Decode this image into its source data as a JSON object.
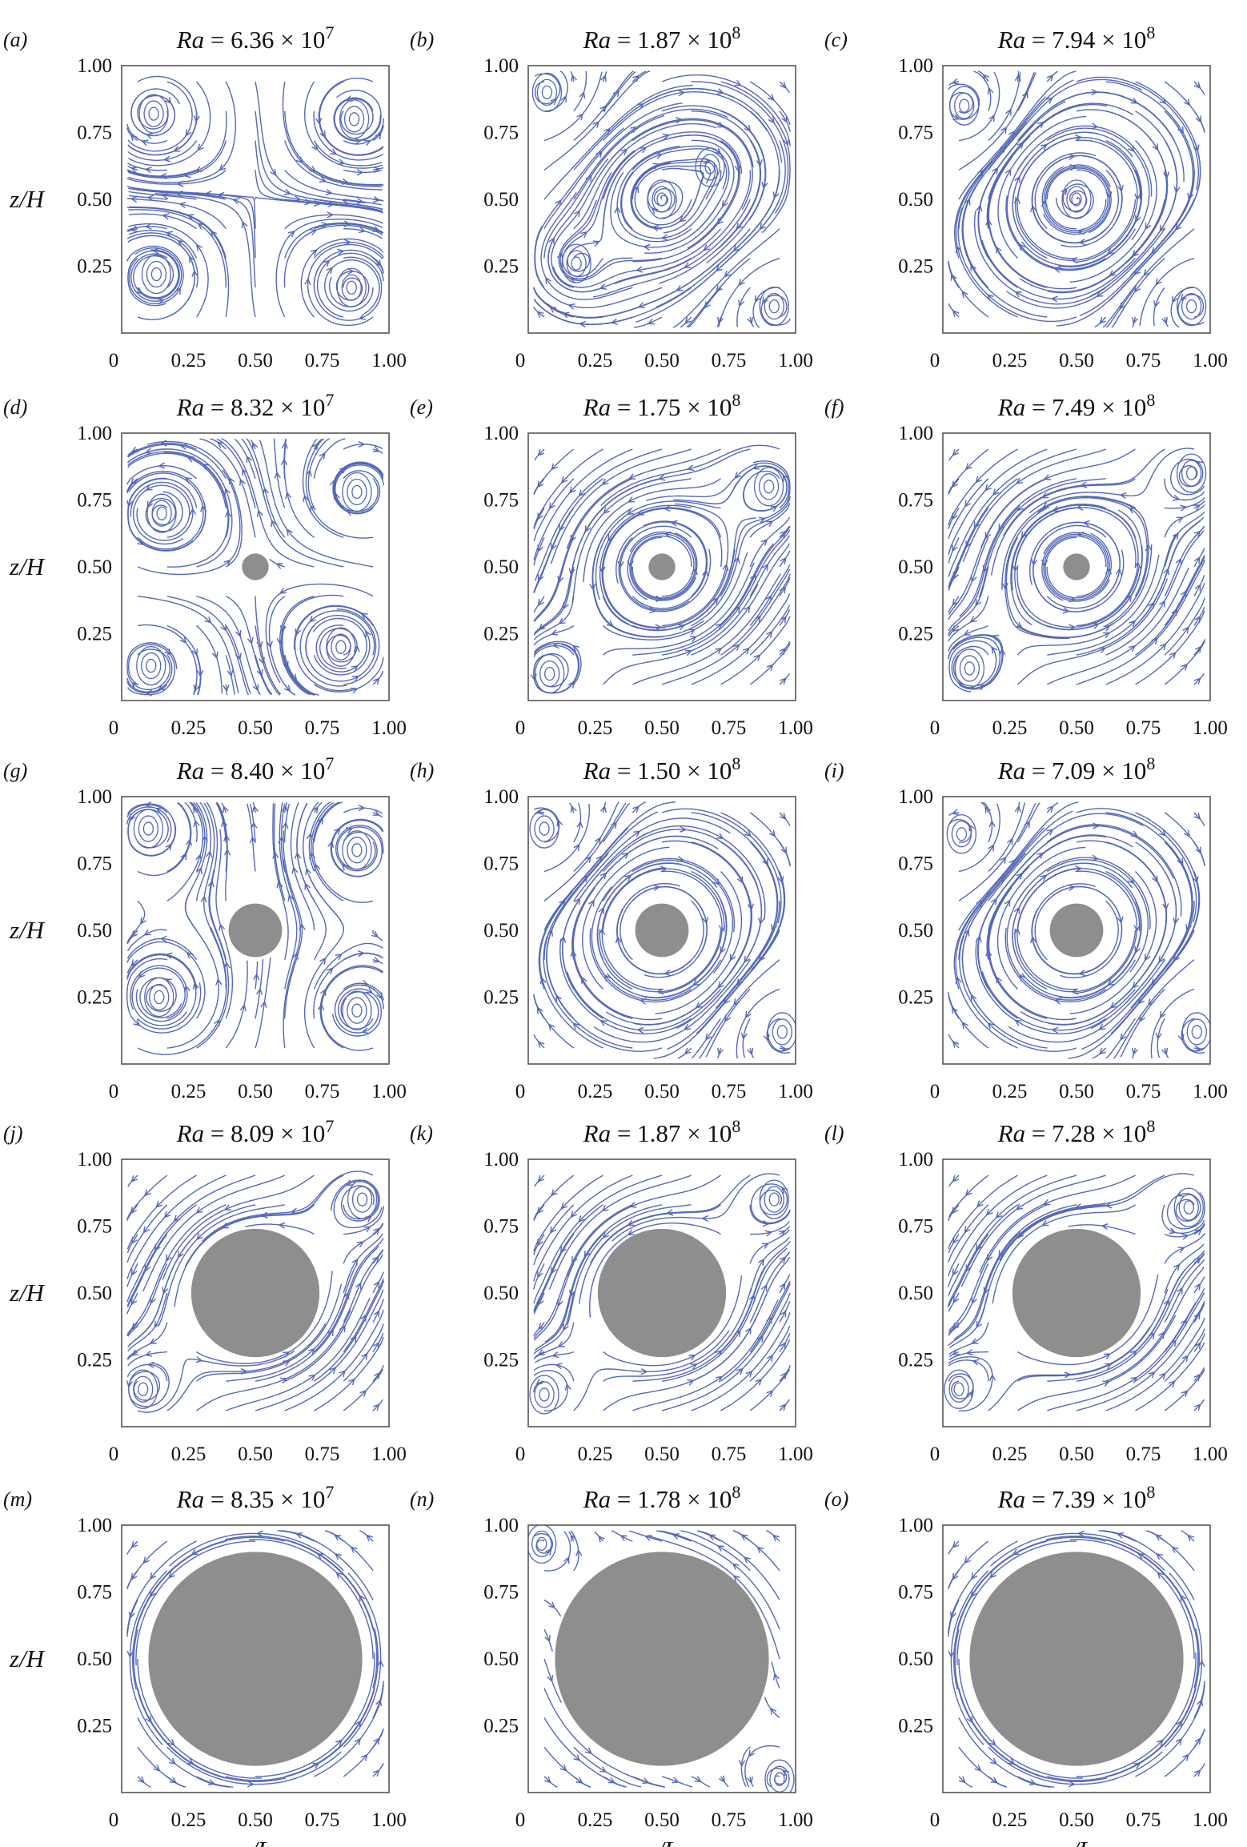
{
  "chart_data": [
    {
      "type": "streamline",
      "panel": "(a)",
      "title_prefix": "Ra",
      "title_mantissa": "6.36",
      "title_exponent": "7",
      "cylinder_diameter": 0,
      "xlabel": "",
      "ylabel": "z/H",
      "xlim": [
        0,
        1
      ],
      "ylim": [
        0,
        1
      ],
      "xticks": [
        "0",
        "0.25",
        "0.50",
        "0.75",
        "1.00"
      ],
      "yticks": [
        "0.25",
        "0.50",
        "0.75",
        "1.00"
      ],
      "vortices": [
        {
          "x": 0.12,
          "y": 0.82,
          "dir": -1
        },
        {
          "x": 0.87,
          "y": 0.8,
          "dir": 1
        },
        {
          "x": 0.13,
          "y": 0.22,
          "dir": 1
        },
        {
          "x": 0.86,
          "y": 0.17,
          "dir": -1
        }
      ]
    },
    {
      "type": "streamline",
      "panel": "(b)",
      "title_prefix": "Ra",
      "title_mantissa": "1.87",
      "title_exponent": "8",
      "cylinder_diameter": 0,
      "xlabel": "",
      "ylabel": "",
      "xlim": [
        0,
        1
      ],
      "ylim": [
        0,
        1
      ],
      "xticks": [
        "0",
        "0.25",
        "0.50",
        "0.75",
        "1.00"
      ],
      "yticks": [
        "0.25",
        "0.50",
        "0.75",
        "1.00"
      ],
      "vortices": [
        {
          "x": 0.5,
          "y": 0.5,
          "dir": -1
        },
        {
          "x": 0.07,
          "y": 0.9,
          "dir": 1
        },
        {
          "x": 0.92,
          "y": 0.1,
          "dir": 1
        },
        {
          "x": 0.18,
          "y": 0.26,
          "dir": -1
        },
        {
          "x": 0.68,
          "y": 0.62,
          "dir": -1
        }
      ]
    },
    {
      "type": "streamline",
      "panel": "(c)",
      "title_prefix": "Ra",
      "title_mantissa": "7.94",
      "title_exponent": "8",
      "cylinder_diameter": 0,
      "xlabel": "",
      "ylabel": "",
      "xlim": [
        0,
        1
      ],
      "ylim": [
        0,
        1
      ],
      "xticks": [
        "0",
        "0.25",
        "0.50",
        "0.75",
        "1.00"
      ],
      "yticks": [
        "0.25",
        "0.50",
        "0.75",
        "1.00"
      ],
      "vortices": [
        {
          "x": 0.5,
          "y": 0.5,
          "dir": -1
        },
        {
          "x": 0.08,
          "y": 0.85,
          "dir": 1
        },
        {
          "x": 0.93,
          "y": 0.1,
          "dir": 1
        }
      ]
    },
    {
      "type": "streamline",
      "panel": "(d)",
      "title_prefix": "Ra",
      "title_mantissa": "8.32",
      "title_exponent": "7",
      "cylinder_diameter": 0.1,
      "xlabel": "",
      "ylabel": "z/H",
      "xlim": [
        0,
        1
      ],
      "ylim": [
        0,
        1
      ],
      "xticks": [
        "0",
        "0.25",
        "0.50",
        "0.75",
        "1.00"
      ],
      "yticks": [
        "0.25",
        "0.50",
        "0.75",
        "1.00"
      ],
      "vortices": [
        {
          "x": 0.15,
          "y": 0.7,
          "dir": 1
        },
        {
          "x": 0.88,
          "y": 0.78,
          "dir": -1
        },
        {
          "x": 0.11,
          "y": 0.13,
          "dir": -1
        },
        {
          "x": 0.82,
          "y": 0.2,
          "dir": 1
        }
      ]
    },
    {
      "type": "streamline",
      "panel": "(e)",
      "title_prefix": "Ra",
      "title_mantissa": "1.75",
      "title_exponent": "8",
      "cylinder_diameter": 0.1,
      "xlabel": "",
      "ylabel": "",
      "xlim": [
        0,
        1
      ],
      "ylim": [
        0,
        1
      ],
      "xticks": [
        "0",
        "0.25",
        "0.50",
        "0.75",
        "1.00"
      ],
      "yticks": [
        "0.25",
        "0.50",
        "0.75",
        "1.00"
      ],
      "vortices": [
        {
          "x": 0.5,
          "y": 0.5,
          "dir": 1
        },
        {
          "x": 0.9,
          "y": 0.8,
          "dir": 1
        },
        {
          "x": 0.08,
          "y": 0.1,
          "dir": 1
        }
      ]
    },
    {
      "type": "streamline",
      "panel": "(f)",
      "title_prefix": "Ra",
      "title_mantissa": "7.49",
      "title_exponent": "8",
      "cylinder_diameter": 0.1,
      "xlabel": "",
      "ylabel": "",
      "xlim": [
        0,
        1
      ],
      "ylim": [
        0,
        1
      ],
      "xticks": [
        "0",
        "0.25",
        "0.50",
        "0.75",
        "1.00"
      ],
      "yticks": [
        "0.25",
        "0.50",
        "0.75",
        "1.00"
      ],
      "vortices": [
        {
          "x": 0.5,
          "y": 0.5,
          "dir": 1
        },
        {
          "x": 0.93,
          "y": 0.85,
          "dir": 1
        },
        {
          "x": 0.1,
          "y": 0.12,
          "dir": 1
        }
      ]
    },
    {
      "type": "streamline",
      "panel": "(g)",
      "title_prefix": "Ra",
      "title_mantissa": "8.40",
      "title_exponent": "7",
      "cylinder_diameter": 0.2,
      "xlabel": "",
      "ylabel": "z/H",
      "xlim": [
        0,
        1
      ],
      "ylim": [
        0,
        1
      ],
      "xticks": [
        "0",
        "0.25",
        "0.50",
        "0.75",
        "1.00"
      ],
      "yticks": [
        "0.25",
        "0.50",
        "0.75",
        "1.00"
      ],
      "vortices": [
        {
          "x": 0.1,
          "y": 0.88,
          "dir": 1
        },
        {
          "x": 0.88,
          "y": 0.8,
          "dir": -1
        },
        {
          "x": 0.14,
          "y": 0.25,
          "dir": 1
        },
        {
          "x": 0.88,
          "y": 0.2,
          "dir": -1
        }
      ]
    },
    {
      "type": "streamline",
      "panel": "(h)",
      "title_prefix": "Ra",
      "title_mantissa": "1.50",
      "title_exponent": "8",
      "cylinder_diameter": 0.2,
      "xlabel": "",
      "ylabel": "",
      "xlim": [
        0,
        1
      ],
      "ylim": [
        0,
        1
      ],
      "xticks": [
        "0",
        "0.25",
        "0.50",
        "0.75",
        "1.00"
      ],
      "yticks": [
        "0.25",
        "0.50",
        "0.75",
        "1.00"
      ],
      "vortices": [
        {
          "x": 0.5,
          "y": 0.5,
          "dir": -1
        },
        {
          "x": 0.06,
          "y": 0.88,
          "dir": 1
        },
        {
          "x": 0.95,
          "y": 0.12,
          "dir": 1
        }
      ]
    },
    {
      "type": "streamline",
      "panel": "(i)",
      "title_prefix": "Ra",
      "title_mantissa": "7.09",
      "title_exponent": "8",
      "cylinder_diameter": 0.2,
      "xlabel": "",
      "ylabel": "",
      "xlim": [
        0,
        1
      ],
      "ylim": [
        0,
        1
      ],
      "xticks": [
        "0",
        "0.25",
        "0.50",
        "0.75",
        "1.00"
      ],
      "yticks": [
        "0.25",
        "0.50",
        "0.75",
        "1.00"
      ],
      "vortices": [
        {
          "x": 0.5,
          "y": 0.5,
          "dir": -1
        },
        {
          "x": 0.07,
          "y": 0.86,
          "dir": 1
        },
        {
          "x": 0.95,
          "y": 0.12,
          "dir": 1
        }
      ]
    },
    {
      "type": "streamline",
      "panel": "(j)",
      "title_prefix": "Ra",
      "title_mantissa": "8.09",
      "title_exponent": "7",
      "cylinder_diameter": 0.48,
      "xlabel": "",
      "ylabel": "z/H",
      "xlim": [
        0,
        1
      ],
      "ylim": [
        0,
        1
      ],
      "xticks": [
        "0",
        "0.25",
        "0.50",
        "0.75",
        "1.00"
      ],
      "yticks": [
        "0.25",
        "0.50",
        "0.75",
        "1.00"
      ],
      "vortices": [
        {
          "x": 0.5,
          "y": 0.5,
          "dir": 1
        },
        {
          "x": 0.9,
          "y": 0.85,
          "dir": 1
        },
        {
          "x": 0.08,
          "y": 0.14,
          "dir": 1
        }
      ]
    },
    {
      "type": "streamline",
      "panel": "(k)",
      "title_prefix": "Ra",
      "title_mantissa": "1.87",
      "title_exponent": "8",
      "cylinder_diameter": 0.48,
      "xlabel": "",
      "ylabel": "",
      "xlim": [
        0,
        1
      ],
      "ylim": [
        0,
        1
      ],
      "xticks": [
        "0",
        "0.25",
        "0.50",
        "0.75",
        "1.00"
      ],
      "yticks": [
        "0.25",
        "0.50",
        "0.75",
        "1.00"
      ],
      "vortices": [
        {
          "x": 0.5,
          "y": 0.5,
          "dir": 1
        },
        {
          "x": 0.92,
          "y": 0.85,
          "dir": 1
        },
        {
          "x": 0.06,
          "y": 0.12,
          "dir": 1
        }
      ]
    },
    {
      "type": "streamline",
      "panel": "(l)",
      "title_prefix": "Ra",
      "title_mantissa": "7.28",
      "title_exponent": "8",
      "cylinder_diameter": 0.48,
      "xlabel": "",
      "ylabel": "",
      "xlim": [
        0,
        1
      ],
      "ylim": [
        0,
        1
      ],
      "xticks": [
        "0",
        "0.25",
        "0.50",
        "0.75",
        "1.00"
      ],
      "yticks": [
        "0.25",
        "0.50",
        "0.75",
        "1.00"
      ],
      "vortices": [
        {
          "x": 0.5,
          "y": 0.5,
          "dir": 1
        },
        {
          "x": 0.92,
          "y": 0.82,
          "dir": 1
        },
        {
          "x": 0.06,
          "y": 0.14,
          "dir": 1
        }
      ]
    },
    {
      "type": "streamline",
      "panel": "(m)",
      "title_prefix": "Ra",
      "title_mantissa": "8.35",
      "title_exponent": "7",
      "cylinder_diameter": 0.8,
      "xlabel": "x/L",
      "ylabel": "z/H",
      "xlim": [
        0,
        1
      ],
      "ylim": [
        0,
        1
      ],
      "xticks": [
        "0",
        "0.25",
        "0.50",
        "0.75",
        "1.00"
      ],
      "yticks": [
        "0.25",
        "0.50",
        "0.75",
        "1.00"
      ],
      "vortices": [
        {
          "x": 0.5,
          "y": 0.5,
          "dir": 1
        }
      ]
    },
    {
      "type": "streamline",
      "panel": "(n)",
      "title_prefix": "Ra",
      "title_mantissa": "1.78",
      "title_exponent": "8",
      "cylinder_diameter": 0.8,
      "xlabel": "x/L",
      "ylabel": "",
      "xlim": [
        0,
        1
      ],
      "ylim": [
        0,
        1
      ],
      "xticks": [
        "0",
        "0.25",
        "0.50",
        "0.75",
        "1.00"
      ],
      "yticks": [
        "0.25",
        "0.50",
        "0.75",
        "1.00"
      ],
      "vortices": [
        {
          "x": 0.5,
          "y": 0.5,
          "dir": 1
        },
        {
          "x": 0.05,
          "y": 0.93,
          "dir": 1
        },
        {
          "x": 0.94,
          "y": 0.05,
          "dir": 1
        }
      ]
    },
    {
      "type": "streamline",
      "panel": "(o)",
      "title_prefix": "Ra",
      "title_mantissa": "7.39",
      "title_exponent": "8",
      "cylinder_diameter": 0.8,
      "xlabel": "x/L",
      "ylabel": "",
      "xlim": [
        0,
        1
      ],
      "ylim": [
        0,
        1
      ],
      "xticks": [
        "0",
        "0.25",
        "0.50",
        "0.75",
        "1.00"
      ],
      "yticks": [
        "0.25",
        "0.50",
        "0.75",
        "1.00"
      ],
      "vortices": [
        {
          "x": 0.5,
          "y": 0.5,
          "dir": 1
        }
      ]
    }
  ],
  "colors": {
    "streamline": "#5468b8",
    "cylinder": "#8e8e8e",
    "frame": "#555555"
  }
}
